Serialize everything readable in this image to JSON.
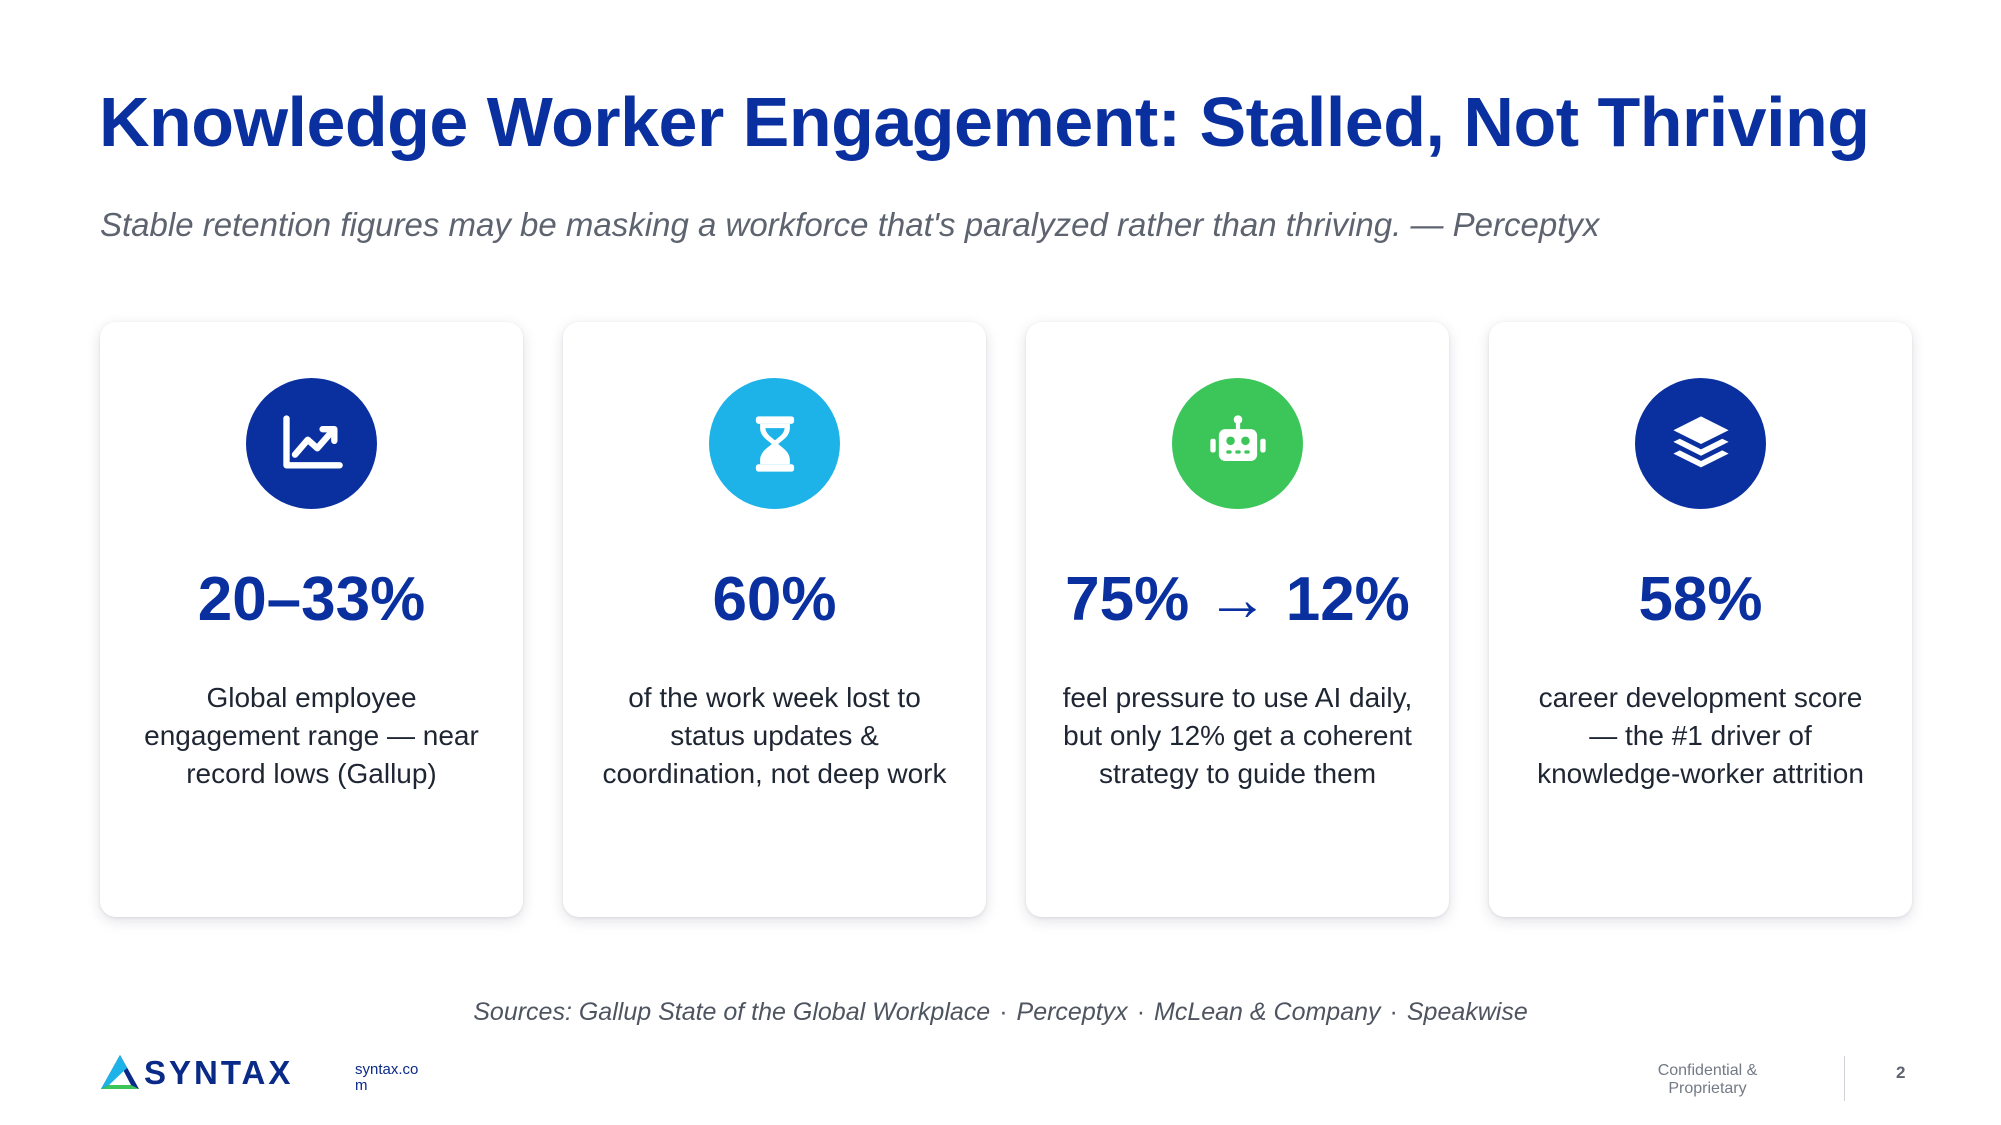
{
  "slide": {
    "title": "Knowledge Worker Engagement: Stalled, Not Thriving",
    "subtitle": "Stable retention figures may be masking a workforce that's paralyzed rather than thriving.  — Perceptyx"
  },
  "cards": [
    {
      "icon": "chart-line-icon",
      "color": "#0a30a0",
      "stat": "20–33%",
      "description": "Global employee engagement range — near record lows (Gallup)"
    },
    {
      "icon": "hourglass-icon",
      "color": "#1db3e8",
      "stat": "60%",
      "description": "of the work week lost to status updates & coordination, not deep work"
    },
    {
      "icon": "robot-icon",
      "color": "#3cc65a",
      "stat": "75% → 12%",
      "description": "feel pressure to use AI daily, but only 12% get a coherent strategy to guide them"
    },
    {
      "icon": "layers-icon",
      "color": "#0a30a0",
      "stat": "58%",
      "description": "career development score — the #1 driver of knowledge-worker attrition"
    }
  ],
  "sources": {
    "prefix": "Sources:",
    "items": [
      "Gallup State of the Global Workplace",
      "Perceptyx",
      "McLean & Company",
      "Speakwise"
    ]
  },
  "footer": {
    "logo_text": "SYNTAX",
    "logo_icon": "syntax-triangle-logo",
    "site": "syntax.com",
    "confidential": "Confidential & Proprietary",
    "page_number": "2"
  }
}
